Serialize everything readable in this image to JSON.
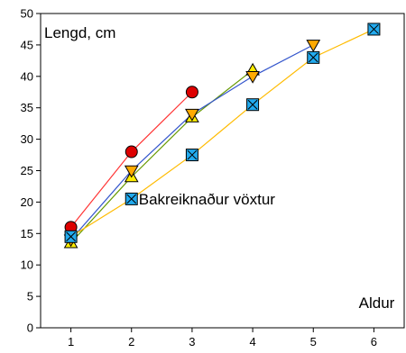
{
  "chart_data": {
    "type": "line",
    "title": "",
    "xlabel": "",
    "ylabel": "",
    "xlim": [
      0.5,
      6.5
    ],
    "ylim": [
      0,
      50
    ],
    "x_ticks": [
      1,
      2,
      3,
      4,
      5,
      6
    ],
    "y_ticks": [
      0,
      5,
      10,
      15,
      20,
      25,
      30,
      35,
      40,
      45,
      50
    ],
    "grid": false,
    "annotations": {
      "y_axis_title": "Lengd, cm",
      "x_axis_title": "Aldur",
      "legend_text": "Bakreiknaður vöxtur"
    },
    "series": [
      {
        "x": [
          1,
          2,
          3
        ],
        "y": [
          16,
          28,
          37.5
        ],
        "line_color": "#ff3333",
        "fill": "#dd0000",
        "marker": "circle"
      },
      {
        "x": [
          1,
          2,
          3,
          4
        ],
        "y": [
          13.5,
          24,
          33.5,
          41
        ],
        "line_color": "#669900",
        "fill": "#ffee00",
        "marker": "triangle-up"
      },
      {
        "x": [
          1,
          2,
          3,
          4,
          5
        ],
        "y": [
          14,
          25,
          34,
          40,
          45
        ],
        "line_color": "#3355cc",
        "fill": "#ffaa00",
        "marker": "triangle-down"
      },
      {
        "x": [
          1,
          2,
          3,
          4,
          5,
          6
        ],
        "y": [
          14.5,
          20.5,
          27.5,
          35.5,
          43,
          47.5
        ],
        "line_color": "#ffbb00",
        "fill": "#22aaee",
        "marker": "square-x"
      }
    ]
  }
}
